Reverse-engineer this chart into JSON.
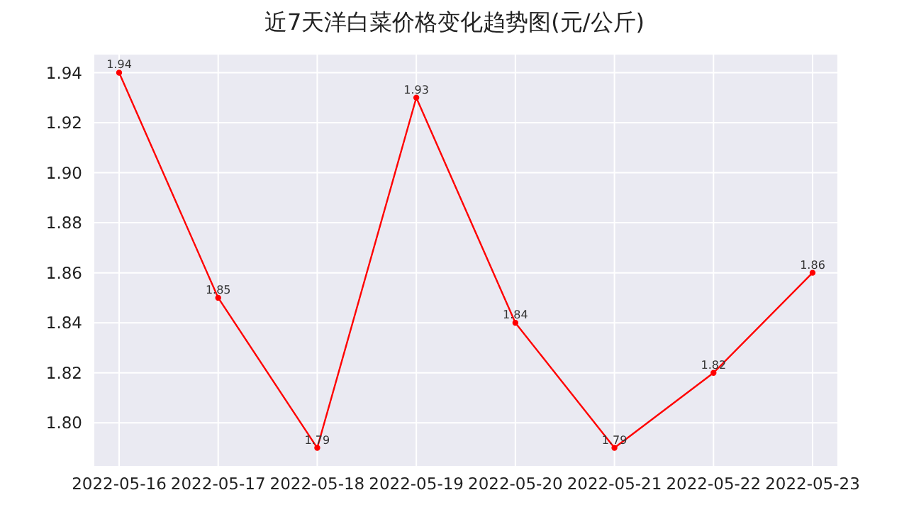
{
  "chart_data": {
    "type": "line",
    "title": "近7天洋白菜价格变化趋势图(元/公斤)",
    "categories": [
      "2022-05-16",
      "2022-05-17",
      "2022-05-18",
      "2022-05-19",
      "2022-05-20",
      "2022-05-21",
      "2022-05-22",
      "2022-05-23"
    ],
    "series": [
      {
        "color": "#ff0000",
        "values": [
          1.94,
          1.85,
          1.79,
          1.93,
          1.84,
          1.79,
          1.82,
          1.86
        ]
      }
    ],
    "ylim": [
      1.7825,
      1.9475
    ],
    "yticks": [
      {
        "value": 1.8,
        "label": "1.80"
      },
      {
        "value": 1.82,
        "label": "1.82"
      },
      {
        "value": 1.84,
        "label": "1.84"
      },
      {
        "value": 1.86,
        "label": "1.86"
      },
      {
        "value": 1.88,
        "label": "1.88"
      },
      {
        "value": 1.9,
        "label": "1.90"
      },
      {
        "value": 1.92,
        "label": "1.92"
      },
      {
        "value": 1.94,
        "label": "1.94"
      }
    ],
    "grid": true,
    "marker": "circle",
    "line_style": "solid",
    "data_labels": true
  }
}
